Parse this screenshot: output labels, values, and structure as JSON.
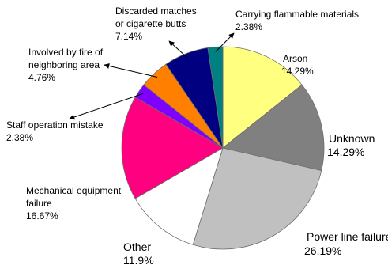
{
  "chart_data": {
    "type": "pie",
    "slices": [
      {
        "label": "Arson",
        "percent_text": "14.29%",
        "value": 14.29,
        "color": "#ffff80"
      },
      {
        "label": "Unknown",
        "percent_text": "14.29%",
        "value": 14.29,
        "color": "#808080"
      },
      {
        "label": "Power line failure",
        "percent_text": "26.19%",
        "value": 26.19,
        "color": "#c0c0c0"
      },
      {
        "label": "Other",
        "percent_text": "11.9%",
        "value": 11.9,
        "color": "#ffffff"
      },
      {
        "label": "Mechanical equipment failure",
        "percent_text": "16.67%",
        "value": 16.67,
        "color": "#ff0080"
      },
      {
        "label": "Staff operation mistake",
        "percent_text": "2.38%",
        "value": 2.38,
        "color": "#8000ff"
      },
      {
        "label": "Involved by fire of neighboring area",
        "percent_text": "4.76%",
        "value": 4.76,
        "color": "#ff8000"
      },
      {
        "label": "Discarded matches or cigarette butts",
        "percent_text": "7.14%",
        "value": 7.14,
        "color": "#000080"
      },
      {
        "label": "Carrying flammable materials",
        "percent_text": "2.38%",
        "value": 2.38,
        "color": "#008080"
      }
    ]
  }
}
